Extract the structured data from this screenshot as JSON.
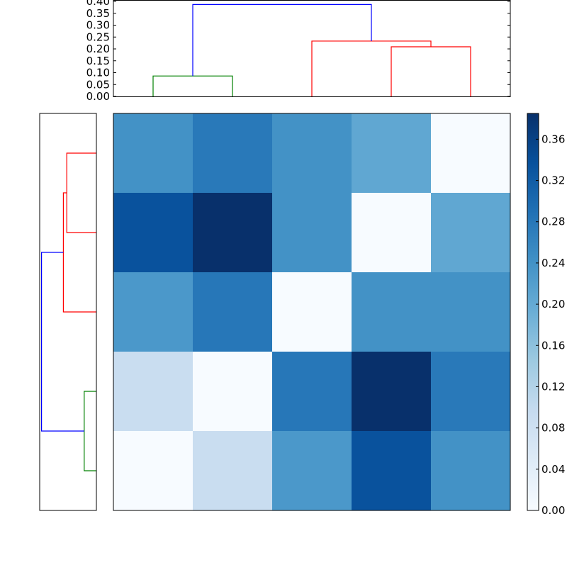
{
  "chart_data": [
    {
      "type": "dendrogram",
      "orientation": "top",
      "yticks": [
        "0.00",
        "0.05",
        "0.10",
        "0.15",
        "0.20",
        "0.25",
        "0.30",
        "0.35",
        "0.40"
      ],
      "ylim": [
        0,
        0.4
      ],
      "leaf_count": 5,
      "links": [
        {
          "left": 0,
          "right": 1,
          "left_height": 0,
          "right_height": 0,
          "height": 0.086,
          "color": "#008000"
        },
        {
          "left": 3,
          "right": 4,
          "left_height": 0,
          "right_height": 0,
          "height": 0.209,
          "color": "#ff0000"
        },
        {
          "left": 2,
          "right": 3.5,
          "left_height": 0,
          "right_height": 0.209,
          "height": 0.233,
          "color": "#ff0000"
        },
        {
          "left": 0.5,
          "right": 2.75,
          "left_height": 0.086,
          "right_height": 0.233,
          "height": 0.387,
          "color": "#0000ff"
        }
      ]
    },
    {
      "type": "dendrogram",
      "orientation": "left",
      "xlim": [
        0,
        0.4
      ],
      "leaf_count": 5,
      "links": [
        {
          "left": 0,
          "right": 1,
          "left_height": 0,
          "right_height": 0,
          "height": 0.209,
          "color": "#ff0000"
        },
        {
          "left": 0.5,
          "right": 2,
          "left_height": 0.209,
          "right_height": 0,
          "height": 0.233,
          "color": "#ff0000"
        },
        {
          "left": 3,
          "right": 4,
          "left_height": 0,
          "right_height": 0,
          "height": 0.086,
          "color": "#008000"
        },
        {
          "left": 1.25,
          "right": 3.5,
          "left_height": 0.233,
          "right_height": 0.086,
          "height": 0.387,
          "color": "#0000ff"
        }
      ]
    },
    {
      "type": "heatmap",
      "colormap": "Blues",
      "vmin": 0,
      "vmax": 0.385,
      "values": [
        [
          0.24,
          0.277,
          0.24,
          0.205,
          0
        ],
        [
          0.335,
          0.385,
          0.24,
          0,
          0.205
        ],
        [
          0.23,
          0.28,
          0,
          0.24,
          0.24
        ],
        [
          0.09,
          0,
          0.28,
          0.385,
          0.277
        ],
        [
          0,
          0.09,
          0.23,
          0.335,
          0.24
        ]
      ],
      "colorbar_ticks": [
        "0.00",
        "0.04",
        "0.08",
        "0.12",
        "0.16",
        "0.20",
        "0.24",
        "0.28",
        "0.32",
        "0.36"
      ]
    }
  ]
}
